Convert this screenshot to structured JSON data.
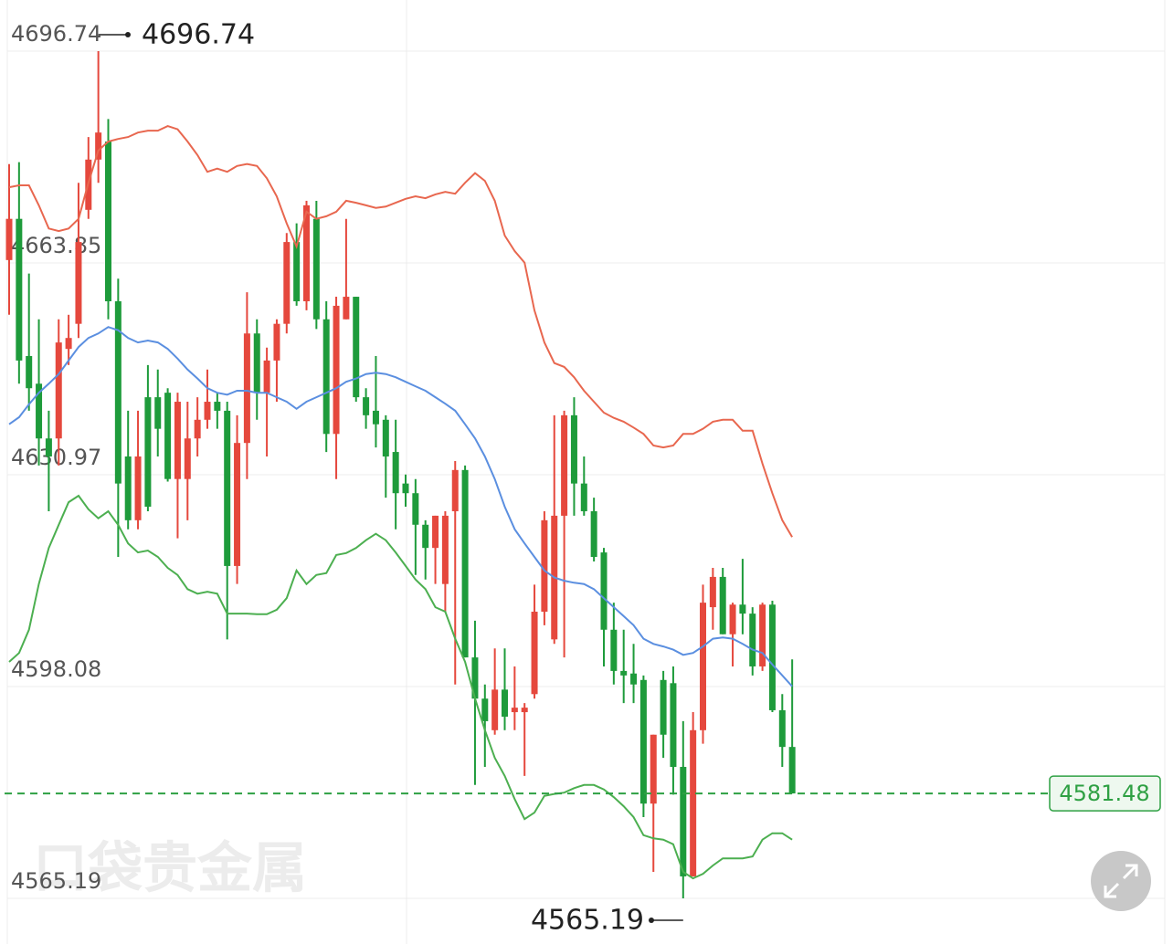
{
  "chart_data": {
    "type": "candlestick",
    "ylim": [
      4565.19,
      4696.74
    ],
    "yticks": [
      4565.19,
      4598.08,
      4630.97,
      4663.85,
      4696.74
    ],
    "grid": true,
    "up_color": "#e5483d",
    "down_color": "#1e9b3b",
    "open": [
      4664.3,
      4670.7,
      4649.4,
      4645.1,
      4636.6,
      4636.6,
      4650.5,
      4654.4,
      4672.1,
      4679.9,
      4682.7,
      4657.9,
      4633.8,
      4623.9,
      4643.0,
      4643.0,
      4643.7,
      4630.3,
      4630.3,
      4636.6,
      4639.5,
      4642.3,
      4640.9,
      4616.8,
      4635.9,
      4652.9,
      4643.7,
      4648.7,
      4654.4,
      4667.1,
      4657.9,
      4670.7,
      4655.1,
      4637.3,
      4655.1,
      4658.6,
      4643.0,
      4640.9,
      4639.5,
      4634.5,
      4629.6,
      4628.1,
      4623.2,
      4619.6,
      4614.0,
      4625.3,
      4631.7,
      4602.6,
      4596.2,
      4591.3,
      4597.6,
      4594.1,
      4594.1,
      4596.9,
      4609.7,
      4605.4,
      4624.6,
      4640.2,
      4629.6,
      4625.3,
      4618.9,
      4606.9,
      4600.5,
      4600.1,
      4599.1,
      4579.9,
      4599.1,
      4598.6,
      4585.6,
      4568.6,
      4591.3,
      4610.4,
      4615.1,
      4606.2,
      4610.8,
      4609.4,
      4601.2,
      4610.8,
      4594.4,
      4588.7
    ],
    "high": [
      4679.2,
      4679.5,
      4662.2,
      4655.1,
      4640.9,
      4655.1,
      4655.8,
      4676.3,
      4683.4,
      4696.74,
      4686.2,
      4661.4,
      4640.9,
      4640.9,
      4648.0,
      4647.3,
      4644.4,
      4643.7,
      4642.3,
      4643.0,
      4647.3,
      4643.7,
      4642.3,
      4640.2,
      4659.3,
      4655.1,
      4650.7,
      4655.1,
      4668.5,
      4670.0,
      4673.5,
      4673.5,
      4657.9,
      4658.6,
      4670.7,
      4658.6,
      4644.4,
      4649.4,
      4640.2,
      4639.5,
      4631.0,
      4630.3,
      4623.9,
      4624.6,
      4625.3,
      4633.1,
      4632.4,
      4608.3,
      4598.4,
      4604.0,
      4604.0,
      4601.2,
      4595.5,
      4613.9,
      4625.3,
      4640.2,
      4640.9,
      4643.0,
      4633.8,
      4627.4,
      4619.6,
      4611.1,
      4606.9,
      4604.7,
      4599.8,
      4590.6,
      4600.5,
      4601.2,
      4592.7,
      4594.1,
      4613.9,
      4616.5,
      4616.5,
      4611.1,
      4617.9,
      4610.4,
      4611.1,
      4611.4,
      4596.9,
      4602.3
    ],
    "low": [
      4655.8,
      4645.1,
      4640.9,
      4632.4,
      4625.3,
      4632.4,
      4648.0,
      4652.2,
      4670.7,
      4676.3,
      4655.1,
      4618.2,
      4622.5,
      4622.5,
      4625.3,
      4633.8,
      4629.9,
      4621.1,
      4623.9,
      4633.8,
      4638.1,
      4638.1,
      4605.4,
      4614.0,
      4630.3,
      4639.5,
      4633.8,
      4642.3,
      4652.9,
      4657.2,
      4656.5,
      4653.6,
      4634.5,
      4630.3,
      4655.1,
      4642.3,
      4638.1,
      4635.2,
      4627.4,
      4622.5,
      4626.0,
      4615.4,
      4614.7,
      4614.0,
      4609.7,
      4598.4,
      4602.6,
      4582.8,
      4585.6,
      4590.6,
      4591.3,
      4591.3,
      4584.2,
      4596.2,
      4607.6,
      4604.7,
      4602.6,
      4624.6,
      4624.6,
      4617.5,
      4601.2,
      4598.4,
      4595.5,
      4595.5,
      4577.8,
      4569.3,
      4587.0,
      4581.3,
      4565.19,
      4568.6,
      4589.2,
      4606.9,
      4606.2,
      4601.2,
      4606.2,
      4599.8,
      4600.5,
      4594.1,
      4585.6,
      4581.48
    ],
    "close": [
      4670.7,
      4648.7,
      4644.4,
      4636.6,
      4633.8,
      4651.5,
      4652.2,
      4667.1,
      4679.9,
      4684.1,
      4657.9,
      4629.6,
      4623.9,
      4633.8,
      4626.0,
      4638.1,
      4630.3,
      4642.3,
      4636.6,
      4639.5,
      4642.3,
      4640.9,
      4616.8,
      4635.9,
      4652.9,
      4643.7,
      4648.7,
      4654.4,
      4667.1,
      4657.9,
      4672.8,
      4655.1,
      4637.3,
      4657.2,
      4658.6,
      4643.0,
      4640.2,
      4638.8,
      4633.8,
      4628.1,
      4628.1,
      4623.2,
      4619.6,
      4624.6,
      4624.6,
      4631.7,
      4602.6,
      4596.2,
      4592.7,
      4597.6,
      4593.4,
      4594.8,
      4594.8,
      4609.7,
      4623.9,
      4624.6,
      4640.2,
      4629.6,
      4625.3,
      4618.2,
      4606.9,
      4600.5,
      4599.8,
      4598.4,
      4579.9,
      4590.6,
      4590.6,
      4585.6,
      4568.6,
      4591.3,
      4611.1,
      4615.1,
      4606.2,
      4610.8,
      4609.4,
      4601.2,
      4610.8,
      4594.4,
      4588.7,
      4581.48
    ],
    "bands": [
      {
        "color": "#e8674f",
        "values": [
          4675.6,
          4675.9,
          4675.9,
          4672.8,
          4669.2,
          4668.8,
          4669.2,
          4670.7,
          4676.3,
          4681.3,
          4682.7,
          4683.1,
          4683.4,
          4684.1,
          4684.4,
          4684.4,
          4685.1,
          4684.6,
          4682.7,
          4680.6,
          4678.0,
          4678.5,
          4678.0,
          4678.9,
          4679.2,
          4678.9,
          4677.0,
          4674.2,
          4670.0,
          4666.4,
          4671.8,
          4670.7,
          4671.1,
          4671.8,
          4673.5,
          4673.2,
          4672.8,
          4672.4,
          4672.6,
          4673.2,
          4673.8,
          4674.2,
          4673.9,
          4674.5,
          4674.9,
          4674.6,
          4676.3,
          4677.8,
          4676.6,
          4673.5,
          4668.1,
          4665.7,
          4663.9,
          4656.5,
          4651.5,
          4648.3,
          4647.7,
          4646.1,
          4644.0,
          4642.3,
          4640.6,
          4639.8,
          4639.2,
          4638.3,
          4637.3,
          4635.5,
          4635.2,
          4635.5,
          4637.3,
          4637.3,
          4638.1,
          4639.2,
          4639.5,
          4639.5,
          4637.8,
          4637.8,
          4632.7,
          4628.1,
          4623.9,
          4621.3
        ]
      },
      {
        "color": "#5b8fe0",
        "values": [
          4638.8,
          4639.9,
          4641.9,
          4643.7,
          4645.1,
          4646.6,
          4648.7,
          4650.8,
          4652.2,
          4652.9,
          4653.9,
          4653.4,
          4652.2,
          4651.5,
          4651.8,
          4651.5,
          4650.5,
          4649.0,
          4647.3,
          4645.9,
          4644.4,
          4643.7,
          4643.4,
          4644.0,
          4644.0,
          4643.7,
          4643.7,
          4643.0,
          4642.3,
          4641.2,
          4642.3,
          4643.0,
          4643.7,
          4644.4,
          4645.4,
          4645.9,
          4646.6,
          4646.8,
          4646.6,
          4646.1,
          4645.4,
          4644.7,
          4644.0,
          4643.0,
          4642.0,
          4640.9,
          4638.8,
          4636.6,
          4633.8,
          4630.3,
          4626.0,
          4622.5,
          4620.3,
          4618.2,
          4616.1,
          4615.0,
          4614.5,
          4614.2,
          4614.0,
          4613.2,
          4611.8,
          4610.4,
          4609.0,
          4607.6,
          4605.5,
          4604.7,
          4604.3,
          4603.8,
          4603.0,
          4603.3,
          4604.3,
          4605.5,
          4605.7,
          4605.5,
          4604.7,
          4603.8,
          4603.3,
          4601.5,
          4599.8,
          4598.1
        ]
      },
      {
        "color": "#4caf50",
        "values": [
          4601.9,
          4603.3,
          4606.9,
          4614.0,
          4619.6,
          4623.2,
          4626.7,
          4627.7,
          4625.6,
          4624.2,
          4625.3,
          4623.2,
          4620.3,
          4618.9,
          4619.2,
          4618.2,
          4616.5,
          4615.4,
          4613.2,
          4612.5,
          4612.8,
          4612.5,
          4609.4,
          4609.4,
          4609.4,
          4609.3,
          4609.3,
          4610.0,
          4611.8,
          4616.1,
          4614.0,
          4615.4,
          4615.7,
          4618.5,
          4618.8,
          4619.6,
          4620.8,
          4621.8,
          4620.8,
          4618.9,
          4616.8,
          4614.7,
          4613.2,
          4610.4,
          4609.7,
          4605.5,
          4601.9,
          4596.2,
          4591.3,
          4587.0,
          4584.2,
          4580.6,
          4577.5,
          4578.5,
          4581.1,
          4581.4,
          4581.6,
          4582.3,
          4582.8,
          4582.8,
          4582.1,
          4580.9,
          4579.5,
          4577.8,
          4575.0,
          4574.5,
          4574.3,
          4573.6,
          4569.3,
          4568.3,
          4569.0,
          4570.3,
          4571.4,
          4571.4,
          4571.4,
          4571.7,
          4574.3,
          4575.3,
          4575.3,
          4574.3
        ]
      }
    ],
    "last_price": {
      "value": 4581.48,
      "color": "#2ea043"
    },
    "max_marker": 4696.74,
    "min_marker": 4565.19,
    "watermark": "口袋贵金属"
  }
}
